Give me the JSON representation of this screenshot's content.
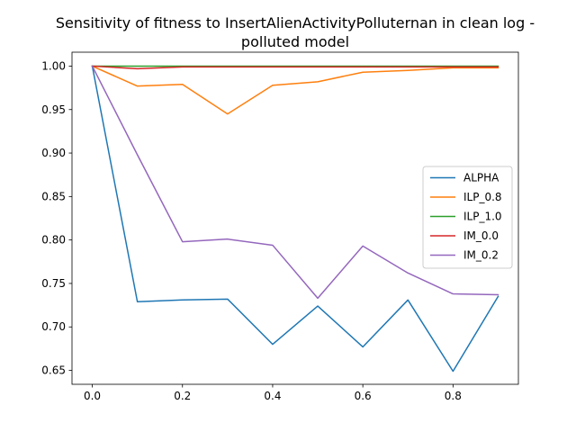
{
  "chart_data": {
    "type": "line",
    "title": "Sensitivity of fitness to InsertAlienActivityPolluternan in clean log -",
    "title_line2": "polluted model",
    "xlabel": "",
    "ylabel": "",
    "xlim": [
      -0.045,
      0.945
    ],
    "ylim": [
      0.634,
      1.016
    ],
    "x": [
      0.0,
      0.1,
      0.2,
      0.3,
      0.4,
      0.5,
      0.6,
      0.7,
      0.8,
      0.9
    ],
    "xticks": [
      0.0,
      0.2,
      0.4,
      0.6,
      0.8
    ],
    "xtick_labels": [
      "0.0",
      "0.2",
      "0.4",
      "0.6",
      "0.8"
    ],
    "yticks": [
      0.65,
      0.7,
      0.75,
      0.8,
      0.85,
      0.9,
      0.95,
      1.0
    ],
    "ytick_labels": [
      "0.65",
      "0.70",
      "0.75",
      "0.80",
      "0.85",
      "0.90",
      "0.95",
      "1.00"
    ],
    "legend_position": "center-right",
    "grid": false,
    "series": [
      {
        "name": "ALPHA",
        "color": "#1f77b4",
        "values": [
          1.0,
          0.729,
          0.731,
          0.732,
          0.68,
          0.724,
          0.677,
          0.731,
          0.649,
          0.735
        ]
      },
      {
        "name": "ILP_0.8",
        "color": "#ff7f0e",
        "values": [
          1.0,
          0.977,
          0.979,
          0.945,
          0.978,
          0.982,
          0.993,
          0.995,
          0.998,
          0.998
        ]
      },
      {
        "name": "ILP_1.0",
        "color": "#2ca02c",
        "values": [
          1.0,
          1.0,
          1.0,
          1.0,
          1.0,
          1.0,
          1.0,
          1.0,
          1.0,
          1.0
        ]
      },
      {
        "name": "IM_0.0",
        "color": "#d62728",
        "values": [
          1.0,
          0.997,
          0.999,
          0.999,
          0.999,
          0.999,
          0.999,
          0.999,
          0.999,
          0.999
        ]
      },
      {
        "name": "IM_0.2",
        "color": "#9467bd",
        "values": [
          1.0,
          0.898,
          0.798,
          0.801,
          0.794,
          0.733,
          0.793,
          0.762,
          0.738,
          0.737
        ]
      }
    ]
  }
}
